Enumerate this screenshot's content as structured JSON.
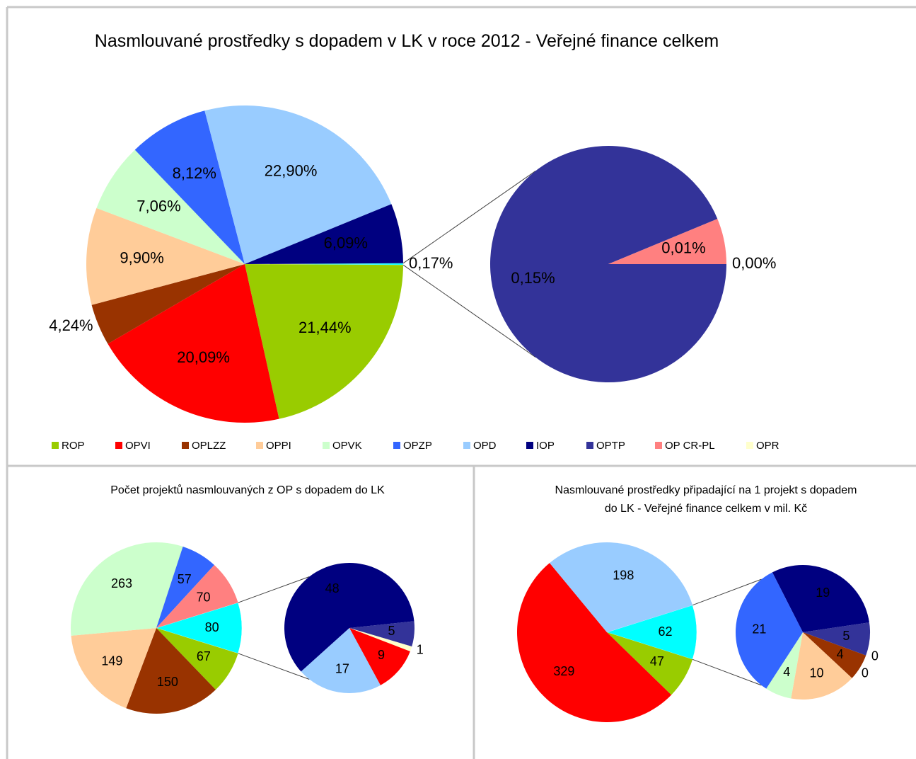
{
  "chart_data": [
    {
      "type": "pie-of-pie",
      "title": "Nasmlouvané prostředky s dopadem v LK v roce 2012 - Veřejné finance celkem",
      "categories": [
        "ROP",
        "OPVI",
        "OPLZZ",
        "OPPI",
        "OPVK",
        "OPZP",
        "OPD",
        "IOP"
      ],
      "values": [
        21.44,
        20.09,
        4.24,
        9.9,
        7.06,
        8.12,
        22.9,
        6.09
      ],
      "value_labels": [
        "21,44%",
        "20,09%",
        "4,24%",
        "9,90%",
        "7,06%",
        "8,12%",
        "22,90%",
        "6,09%"
      ],
      "colors": [
        "#99cc00",
        "#ff0000",
        "#993300",
        "#ffcc99",
        "#ccffcc",
        "#3366ff",
        "#99ccff",
        "#000080"
      ],
      "secondary_categories": [
        "OPTP",
        "OP CR-PL",
        "OPR"
      ],
      "secondary_values": [
        0.15,
        0.01,
        0.0
      ],
      "secondary_value_labels": [
        "0,15%",
        "0,01%",
        "0,00%"
      ],
      "secondary_colors": [
        "#333399",
        "#ff8080",
        "#ffffcc"
      ],
      "combined_value": 0.17,
      "combined_label": "0,17%",
      "combined_color": "#00ffff",
      "legend": true
    },
    {
      "type": "pie-of-pie",
      "title": "Počet projektů nasmlouvaných z OP s dopadem do LK",
      "values": [
        67,
        150,
        149,
        263,
        57,
        70
      ],
      "colors": [
        "#99cc00",
        "#993300",
        "#ffcc99",
        "#ccffcc",
        "#3366ff",
        "#ff8080"
      ],
      "secondary_values": [
        48,
        5,
        1,
        9,
        17
      ],
      "secondary_colors": [
        "#000080",
        "#333399",
        "#ffffcc",
        "#ff0000",
        "#99ccff"
      ],
      "combined_value": 80,
      "combined_color": "#00ffff",
      "legend": false
    },
    {
      "type": "pie-of-pie",
      "title": "Nasmlouvané prostředky připadající na 1 projekt s dopadem do LK - Veřejné finance celkem v mil. Kč",
      "values": [
        47,
        329,
        198
      ],
      "colors": [
        "#99cc00",
        "#ff0000",
        "#99ccff"
      ],
      "secondary_values": [
        19,
        5,
        0,
        0,
        4,
        10,
        4,
        21
      ],
      "secondary_colors": [
        "#000080",
        "#333399",
        "#ffffcc",
        "#ff8080",
        "#993300",
        "#ffcc99",
        "#ccffcc",
        "#3366ff"
      ],
      "combined_value": 62,
      "combined_color": "#00ffff",
      "legend": false
    }
  ]
}
